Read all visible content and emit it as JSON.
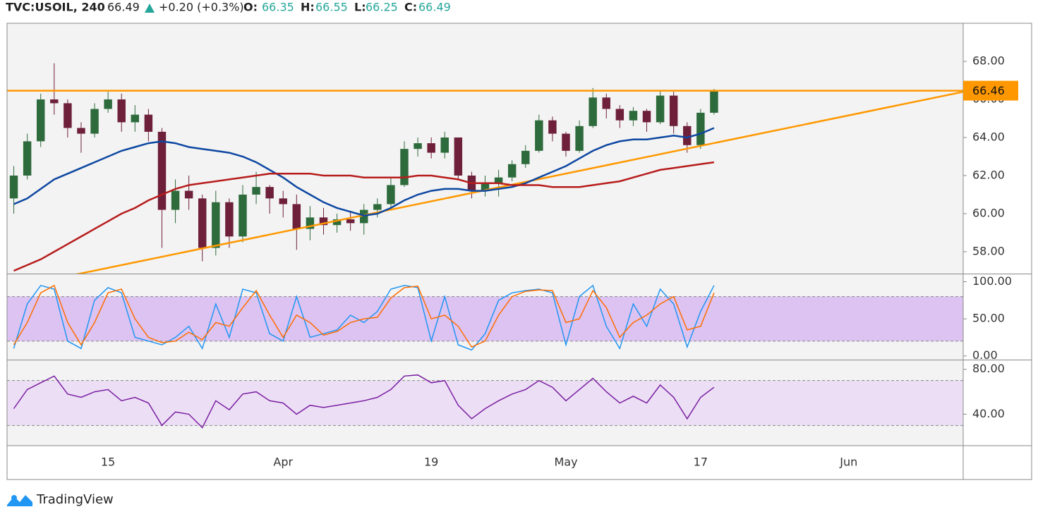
{
  "header": {
    "symbol": "TVC:USOIL, 240",
    "last": "66.49",
    "change": "+0.20 (+0.3%)",
    "ohlc": [
      {
        "label": "O:",
        "value": "66.35"
      },
      {
        "label": "H:",
        "value": "66.55"
      },
      {
        "label": "L:",
        "value": "66.25"
      },
      {
        "label": "C:",
        "value": "66.49"
      }
    ]
  },
  "footer": {
    "brand": "TradingView"
  },
  "chart_data": [
    {
      "type": "candlestick",
      "categories": [
        null,
        null,
        null,
        null,
        null,
        null,
        null,
        "15",
        null,
        null,
        null,
        null,
        null,
        null,
        null,
        null,
        null,
        null,
        null,
        null,
        "Apr",
        null,
        null,
        null,
        null,
        null,
        null,
        null,
        null,
        null,
        null,
        "19",
        null,
        null,
        null,
        null,
        null,
        null,
        null,
        null,
        null,
        "May",
        null,
        null,
        null,
        null,
        null,
        null,
        null,
        null,
        null,
        "17",
        null,
        null,
        null,
        null,
        null,
        null,
        null,
        null,
        null,
        null,
        "Jun",
        null,
        null,
        null,
        null,
        null,
        null,
        null,
        null
      ],
      "open": [
        60.8,
        62,
        63.8,
        66,
        65.8,
        64.5,
        64.2,
        65.5,
        66,
        64.8,
        65.2,
        64.3,
        60.2,
        61.2,
        60.8,
        58.2,
        60.6,
        58.8,
        61,
        61.4,
        60.8,
        60.5,
        59.2,
        59.8,
        59.4,
        59.7,
        59.5,
        60.2,
        60.5,
        61.5,
        63.4,
        63.7,
        63.2,
        64,
        62,
        61.2,
        61.6,
        61.9,
        62.6,
        63.3,
        64.9,
        64.2,
        63.3,
        64.6,
        66.1,
        65.5,
        64.9,
        65.4,
        64.8,
        66.2,
        64.6,
        63.6,
        65.3,
        null,
        null,
        null,
        null,
        null,
        null,
        null,
        null,
        null,
        null,
        null,
        null,
        null,
        null,
        null,
        null,
        null,
        null
      ],
      "high": [
        62.5,
        64.2,
        66.3,
        67.9,
        66,
        64.8,
        65.8,
        66.4,
        66.3,
        65.7,
        65.5,
        64.5,
        61.8,
        62,
        61,
        61.2,
        60.8,
        61.5,
        62.2,
        61.5,
        61.2,
        61,
        60.4,
        60.3,
        60,
        60.1,
        60.5,
        60.8,
        61.9,
        63.8,
        64,
        64,
        64.3,
        64,
        62.2,
        62,
        62.3,
        62.8,
        63.6,
        65.2,
        65.1,
        64.3,
        64.9,
        66.6,
        66.3,
        65.7,
        65.6,
        65.5,
        66.5,
        66.4,
        64.8,
        65.5,
        66.55,
        null,
        null,
        null,
        null,
        null,
        null,
        null,
        null,
        null,
        null,
        null,
        null,
        null,
        null,
        null,
        null,
        null,
        null
      ],
      "low": [
        60,
        61.8,
        63.5,
        65.2,
        64,
        63.2,
        64,
        65.3,
        64.3,
        64.3,
        63.8,
        58.2,
        59.5,
        60.2,
        57.5,
        57.8,
        58.2,
        58.5,
        60.5,
        60,
        59.8,
        58.1,
        58.6,
        58.9,
        59,
        59.1,
        58.9,
        59.8,
        60.3,
        61.4,
        63,
        62.9,
        62.9,
        61.8,
        60.8,
        60.9,
        60.9,
        61.7,
        62.4,
        63.2,
        63.8,
        63,
        63.2,
        64.5,
        65,
        64.5,
        64.6,
        64.3,
        64.7,
        64.2,
        63.2,
        63.4,
        65.2,
        null,
        null,
        null,
        null,
        null,
        null,
        null,
        null,
        null,
        null,
        null,
        null,
        null,
        null,
        null,
        null,
        null,
        null
      ],
      "close": [
        62,
        63.8,
        66,
        65.8,
        64.5,
        64.2,
        65.5,
        66,
        64.8,
        65.2,
        64.3,
        60.2,
        61.2,
        60.8,
        58.2,
        60.6,
        58.8,
        61,
        61.4,
        60.8,
        60.5,
        59.2,
        59.8,
        59.4,
        59.7,
        59.5,
        60.2,
        60.5,
        61.5,
        63.4,
        63.7,
        63.2,
        64,
        62,
        61.2,
        61.6,
        61.9,
        62.6,
        63.3,
        64.9,
        64.2,
        63.3,
        64.6,
        66.1,
        65.5,
        64.9,
        65.4,
        64.8,
        66.2,
        64.6,
        63.6,
        65.3,
        66.49,
        null,
        null,
        null,
        null,
        null,
        null,
        null,
        null,
        null,
        null,
        null,
        null,
        null,
        null,
        null,
        null,
        null,
        null
      ],
      "up_color": "#2e6b3c",
      "down_color": "#6e1f3a",
      "lines": [
        {
          "color": "#0d47a1",
          "values": [
            60.5,
            60.8,
            61.3,
            61.8,
            62.1,
            62.4,
            62.7,
            63.0,
            63.3,
            63.5,
            63.7,
            63.8,
            63.7,
            63.5,
            63.4,
            63.3,
            63.2,
            63.0,
            62.7,
            62.3,
            61.9,
            61.4,
            61.0,
            60.6,
            60.3,
            60.1,
            59.9,
            60.0,
            60.3,
            60.7,
            61.0,
            61.2,
            61.3,
            61.3,
            61.2,
            61.2,
            61.3,
            61.4,
            61.6,
            61.9,
            62.2,
            62.5,
            62.9,
            63.3,
            63.6,
            63.8,
            63.9,
            63.9,
            64.0,
            64.1,
            64.0,
            64.2,
            64.5,
            null,
            null,
            null,
            null,
            null,
            null,
            null,
            null,
            null,
            null,
            null,
            null,
            null,
            null,
            null,
            null,
            null,
            null
          ]
        },
        {
          "color": "#b71c1c",
          "values": [
            57.0,
            57.3,
            57.6,
            58.0,
            58.4,
            58.8,
            59.2,
            59.6,
            60.0,
            60.3,
            60.7,
            61.0,
            61.3,
            61.5,
            61.6,
            61.7,
            61.8,
            61.9,
            62.0,
            62.1,
            62.1,
            62.1,
            62.1,
            62.0,
            62.0,
            62.0,
            61.9,
            61.9,
            61.9,
            61.9,
            62.0,
            62.0,
            61.9,
            61.8,
            61.6,
            61.6,
            61.6,
            61.5,
            61.5,
            61.5,
            61.4,
            61.4,
            61.4,
            61.5,
            61.6,
            61.7,
            61.9,
            62.1,
            62.3,
            62.4,
            62.5,
            62.6,
            62.7,
            null,
            null,
            null,
            null,
            null,
            null,
            null,
            null,
            null,
            null,
            null,
            null,
            null,
            null,
            null,
            null,
            null,
            null
          ]
        }
      ],
      "hline": {
        "value": 66.46,
        "color": "#ff9800"
      },
      "trendline": {
        "values": [
          56.06,
          66.4
        ],
        "color": "#ff9800"
      },
      "ylim": [
        56.85,
        70
      ],
      "yticks": [
        {
          "value": 58,
          "label": "58.00"
        },
        {
          "value": 60,
          "label": "60.00"
        },
        {
          "value": 62,
          "label": "62.00"
        },
        {
          "value": 64,
          "label": "64.00"
        },
        {
          "value": 66,
          "label": "66.00"
        },
        {
          "value": 68,
          "label": "68.00"
        }
      ]
    },
    {
      "type": "line",
      "series": [
        {
          "color": "#2196f3",
          "values": [
            10,
            70,
            95,
            90,
            20,
            10,
            75,
            92,
            85,
            25,
            20,
            15,
            25,
            40,
            10,
            70,
            25,
            90,
            85,
            30,
            20,
            80,
            25,
            30,
            35,
            55,
            45,
            60,
            90,
            95,
            92,
            20,
            80,
            15,
            8,
            30,
            75,
            85,
            88,
            90,
            85,
            15,
            80,
            95,
            40,
            10,
            70,
            40,
            90,
            70,
            12,
            60,
            95,
            null,
            null,
            null,
            null,
            null,
            null,
            null,
            null,
            null,
            null,
            null,
            null,
            null,
            null,
            null,
            null,
            null,
            null
          ]
        },
        {
          "color": "#ff6d00",
          "values": [
            15,
            45,
            85,
            95,
            45,
            15,
            45,
            85,
            90,
            50,
            25,
            18,
            20,
            32,
            22,
            45,
            40,
            65,
            88,
            55,
            25,
            55,
            45,
            28,
            33,
            45,
            50,
            52,
            78,
            92,
            94,
            50,
            55,
            40,
            12,
            20,
            55,
            80,
            87,
            89,
            88,
            45,
            50,
            88,
            65,
            25,
            45,
            55,
            70,
            80,
            35,
            40,
            85,
            null,
            null,
            null,
            null,
            null,
            null,
            null,
            null,
            null,
            null,
            null,
            null,
            null,
            null,
            null,
            null,
            null,
            null
          ]
        }
      ],
      "band": [
        20,
        80
      ],
      "band_color": "#dcc3f2",
      "ylim": [
        -5,
        110
      ],
      "yticks": [
        {
          "value": 0,
          "label": "0.00"
        },
        {
          "value": 50,
          "label": "50.00"
        },
        {
          "value": 100,
          "label": "100.00"
        }
      ]
    },
    {
      "type": "line",
      "series": [
        {
          "color": "#7b1fa2",
          "values": [
            45,
            62,
            68,
            74,
            58,
            55,
            60,
            62,
            52,
            55,
            50,
            30,
            42,
            40,
            28,
            52,
            44,
            58,
            60,
            52,
            50,
            40,
            48,
            46,
            48,
            50,
            52,
            55,
            62,
            74,
            75,
            68,
            70,
            48,
            36,
            45,
            52,
            58,
            62,
            70,
            64,
            52,
            62,
            72,
            60,
            50,
            56,
            50,
            66,
            55,
            36,
            55,
            64,
            null,
            null,
            null,
            null,
            null,
            null,
            null,
            null,
            null,
            null,
            null,
            null,
            null,
            null,
            null,
            null,
            null,
            null
          ]
        }
      ],
      "band": [
        30,
        70
      ],
      "band_color": "#ecdff5",
      "ylim": [
        12,
        88
      ],
      "yticks": [
        {
          "value": 40,
          "label": "40.00"
        },
        {
          "value": 80,
          "label": "80.00"
        }
      ]
    }
  ]
}
